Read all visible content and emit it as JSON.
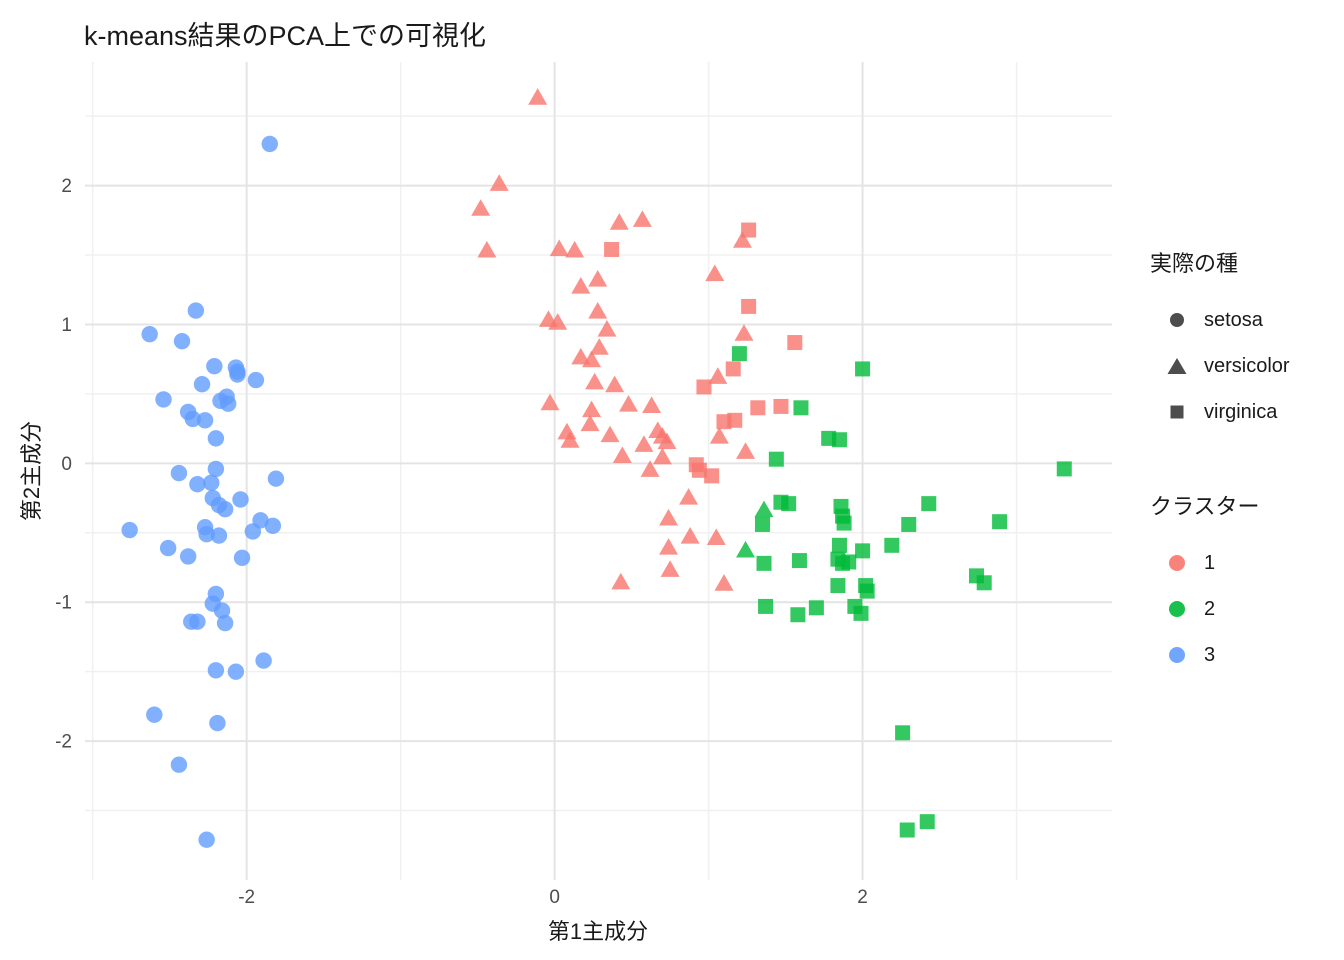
{
  "title": "k-means結果のPCA上での可視化",
  "colors": {
    "cluster_1": "#F8766D",
    "cluster_2": "#00BA38",
    "cluster_3": "#619CFF",
    "legend_shape_glyph": "#4D4D4D",
    "grid_major": "#E4E4E4",
    "grid_minor": "#F0F0F0",
    "tick_label": "#4D4D4D",
    "text": "#1a1a1a"
  },
  "legend_species": {
    "title": "実際の種",
    "items": [
      {
        "shape": "circle",
        "label": "setosa"
      },
      {
        "shape": "triangle",
        "label": "versicolor"
      },
      {
        "shape": "square",
        "label": "virginica"
      }
    ]
  },
  "legend_cluster": {
    "title": "クラスター",
    "items": [
      {
        "color": "#F8766D",
        "label": "1"
      },
      {
        "color": "#00BA38",
        "label": "2"
      },
      {
        "color": "#619CFF",
        "label": "3"
      }
    ]
  },
  "chart_data": {
    "type": "scatter",
    "title": "k-means結果のPCA上での可視化",
    "xlabel": "第1主成分",
    "ylabel": "第2主成分",
    "xlim": [
      -3.05,
      3.62
    ],
    "ylim": [
      -3.0,
      2.89
    ],
    "x_ticks": [
      -2,
      0,
      2
    ],
    "y_ticks": [
      -2,
      -1,
      0,
      1,
      2
    ],
    "x_minor_ticks": [
      -3,
      -1,
      1,
      3
    ],
    "y_minor_ticks": [
      -2.5,
      -1.5,
      -0.5,
      0.5,
      1.5,
      2.5
    ],
    "grid": true,
    "legend_position": "right",
    "shape_by": "実際の種 (species)",
    "color_by": "クラスター (cluster)",
    "point_fields": [
      "x",
      "y",
      "cluster",
      "species"
    ],
    "points": [
      [
        -1.85,
        2.3,
        3,
        "setosa"
      ],
      [
        -2.33,
        1.1,
        3,
        "setosa"
      ],
      [
        -2.63,
        0.93,
        3,
        "setosa"
      ],
      [
        -2.42,
        0.88,
        3,
        "setosa"
      ],
      [
        -2.21,
        0.7,
        3,
        "setosa"
      ],
      [
        -2.07,
        0.69,
        3,
        "setosa"
      ],
      [
        -2.06,
        0.66,
        3,
        "setosa"
      ],
      [
        -2.06,
        0.64,
        3,
        "setosa"
      ],
      [
        -1.94,
        0.6,
        3,
        "setosa"
      ],
      [
        -2.29,
        0.57,
        3,
        "setosa"
      ],
      [
        -2.54,
        0.46,
        3,
        "setosa"
      ],
      [
        -2.13,
        0.48,
        3,
        "setosa"
      ],
      [
        -2.17,
        0.45,
        3,
        "setosa"
      ],
      [
        -2.12,
        0.43,
        3,
        "setosa"
      ],
      [
        -2.38,
        0.37,
        3,
        "setosa"
      ],
      [
        -2.35,
        0.32,
        3,
        "setosa"
      ],
      [
        -2.27,
        0.31,
        3,
        "setosa"
      ],
      [
        -2.2,
        0.18,
        3,
        "setosa"
      ],
      [
        -2.2,
        -0.04,
        3,
        "setosa"
      ],
      [
        -2.44,
        -0.07,
        3,
        "setosa"
      ],
      [
        -1.81,
        -0.11,
        3,
        "setosa"
      ],
      [
        -2.32,
        -0.15,
        3,
        "setosa"
      ],
      [
        -2.23,
        -0.14,
        3,
        "setosa"
      ],
      [
        -2.04,
        -0.26,
        3,
        "setosa"
      ],
      [
        -2.22,
        -0.25,
        3,
        "setosa"
      ],
      [
        -2.18,
        -0.3,
        3,
        "setosa"
      ],
      [
        -2.14,
        -0.33,
        3,
        "setosa"
      ],
      [
        -2.27,
        -0.46,
        3,
        "setosa"
      ],
      [
        -2.26,
        -0.51,
        3,
        "setosa"
      ],
      [
        -2.18,
        -0.52,
        3,
        "setosa"
      ],
      [
        -2.76,
        -0.48,
        3,
        "setosa"
      ],
      [
        -1.96,
        -0.49,
        3,
        "setosa"
      ],
      [
        -1.91,
        -0.41,
        3,
        "setosa"
      ],
      [
        -1.83,
        -0.45,
        3,
        "setosa"
      ],
      [
        -2.51,
        -0.61,
        3,
        "setosa"
      ],
      [
        -2.38,
        -0.67,
        3,
        "setosa"
      ],
      [
        -2.03,
        -0.68,
        3,
        "setosa"
      ],
      [
        -2.2,
        -0.94,
        3,
        "setosa"
      ],
      [
        -2.22,
        -1.01,
        3,
        "setosa"
      ],
      [
        -2.16,
        -1.06,
        3,
        "setosa"
      ],
      [
        -2.36,
        -1.14,
        3,
        "setosa"
      ],
      [
        -2.32,
        -1.14,
        3,
        "setosa"
      ],
      [
        -2.14,
        -1.15,
        3,
        "setosa"
      ],
      [
        -1.89,
        -1.42,
        3,
        "setosa"
      ],
      [
        -2.2,
        -1.49,
        3,
        "setosa"
      ],
      [
        -2.07,
        -1.5,
        3,
        "setosa"
      ],
      [
        -2.6,
        -1.81,
        3,
        "setosa"
      ],
      [
        -2.19,
        -1.87,
        3,
        "setosa"
      ],
      [
        -2.44,
        -2.17,
        3,
        "setosa"
      ],
      [
        -2.26,
        -2.71,
        3,
        "setosa"
      ],
      [
        -0.11,
        2.63,
        1,
        "versicolor"
      ],
      [
        -0.36,
        2.01,
        1,
        "versicolor"
      ],
      [
        -0.48,
        1.83,
        1,
        "versicolor"
      ],
      [
        -0.44,
        1.53,
        1,
        "versicolor"
      ],
      [
        0.42,
        1.73,
        1,
        "versicolor"
      ],
      [
        0.57,
        1.75,
        1,
        "versicolor"
      ],
      [
        0.03,
        1.54,
        1,
        "versicolor"
      ],
      [
        0.13,
        1.53,
        1,
        "versicolor"
      ],
      [
        1.22,
        1.6,
        1,
        "versicolor"
      ],
      [
        1.04,
        1.36,
        1,
        "versicolor"
      ],
      [
        0.17,
        1.27,
        1,
        "versicolor"
      ],
      [
        0.28,
        1.32,
        1,
        "versicolor"
      ],
      [
        -0.04,
        1.03,
        1,
        "versicolor"
      ],
      [
        0.02,
        1.01,
        1,
        "versicolor"
      ],
      [
        0.28,
        1.09,
        1,
        "versicolor"
      ],
      [
        0.34,
        0.96,
        1,
        "versicolor"
      ],
      [
        0.29,
        0.83,
        1,
        "versicolor"
      ],
      [
        0.17,
        0.76,
        1,
        "versicolor"
      ],
      [
        0.24,
        0.74,
        1,
        "versicolor"
      ],
      [
        1.23,
        0.93,
        1,
        "versicolor"
      ],
      [
        1.06,
        0.62,
        1,
        "versicolor"
      ],
      [
        0.26,
        0.58,
        1,
        "versicolor"
      ],
      [
        0.39,
        0.56,
        1,
        "versicolor"
      ],
      [
        -0.03,
        0.43,
        1,
        "versicolor"
      ],
      [
        0.48,
        0.42,
        1,
        "versicolor"
      ],
      [
        0.63,
        0.41,
        1,
        "versicolor"
      ],
      [
        0.24,
        0.38,
        1,
        "versicolor"
      ],
      [
        0.23,
        0.28,
        1,
        "versicolor"
      ],
      [
        0.08,
        0.22,
        1,
        "versicolor"
      ],
      [
        0.1,
        0.16,
        1,
        "versicolor"
      ],
      [
        0.36,
        0.2,
        1,
        "versicolor"
      ],
      [
        0.58,
        0.13,
        1,
        "versicolor"
      ],
      [
        0.67,
        0.23,
        1,
        "versicolor"
      ],
      [
        0.7,
        0.19,
        1,
        "versicolor"
      ],
      [
        0.73,
        0.15,
        1,
        "versicolor"
      ],
      [
        1.07,
        0.19,
        1,
        "versicolor"
      ],
      [
        0.44,
        0.05,
        1,
        "versicolor"
      ],
      [
        1.24,
        0.08,
        1,
        "versicolor"
      ],
      [
        0.62,
        -0.05,
        1,
        "versicolor"
      ],
      [
        0.7,
        0.04,
        1,
        "versicolor"
      ],
      [
        0.87,
        -0.25,
        1,
        "versicolor"
      ],
      [
        0.74,
        -0.4,
        1,
        "versicolor"
      ],
      [
        0.88,
        -0.53,
        1,
        "versicolor"
      ],
      [
        1.05,
        -0.54,
        1,
        "versicolor"
      ],
      [
        0.74,
        -0.61,
        1,
        "versicolor"
      ],
      [
        0.75,
        -0.77,
        1,
        "versicolor"
      ],
      [
        0.43,
        -0.86,
        1,
        "versicolor"
      ],
      [
        1.1,
        -0.87,
        1,
        "versicolor"
      ],
      [
        0.37,
        1.54,
        1,
        "virginica"
      ],
      [
        1.26,
        1.68,
        1,
        "virginica"
      ],
      [
        1.26,
        1.13,
        1,
        "virginica"
      ],
      [
        1.56,
        0.87,
        1,
        "virginica"
      ],
      [
        0.97,
        0.55,
        1,
        "virginica"
      ],
      [
        1.16,
        0.68,
        1,
        "virginica"
      ],
      [
        1.32,
        0.4,
        1,
        "virginica"
      ],
      [
        1.47,
        0.41,
        1,
        "virginica"
      ],
      [
        1.1,
        0.3,
        1,
        "virginica"
      ],
      [
        1.17,
        0.31,
        1,
        "virginica"
      ],
      [
        0.92,
        -0.01,
        1,
        "virginica"
      ],
      [
        0.94,
        -0.05,
        1,
        "virginica"
      ],
      [
        1.02,
        -0.09,
        1,
        "virginica"
      ],
      [
        1.36,
        -0.34,
        2,
        "versicolor"
      ],
      [
        1.24,
        -0.63,
        2,
        "versicolor"
      ],
      [
        1.2,
        0.79,
        2,
        "virginica"
      ],
      [
        2.0,
        0.68,
        2,
        "virginica"
      ],
      [
        1.6,
        0.4,
        2,
        "virginica"
      ],
      [
        1.78,
        0.18,
        2,
        "virginica"
      ],
      [
        1.85,
        0.17,
        2,
        "virginica"
      ],
      [
        1.44,
        0.03,
        2,
        "virginica"
      ],
      [
        3.31,
        -0.04,
        2,
        "virginica"
      ],
      [
        1.47,
        -0.28,
        2,
        "virginica"
      ],
      [
        1.52,
        -0.29,
        2,
        "virginica"
      ],
      [
        2.43,
        -0.29,
        2,
        "virginica"
      ],
      [
        1.86,
        -0.31,
        2,
        "virginica"
      ],
      [
        1.87,
        -0.38,
        2,
        "virginica"
      ],
      [
        1.88,
        -0.43,
        2,
        "virginica"
      ],
      [
        1.35,
        -0.44,
        2,
        "virginica"
      ],
      [
        2.3,
        -0.44,
        2,
        "virginica"
      ],
      [
        2.89,
        -0.42,
        2,
        "virginica"
      ],
      [
        1.85,
        -0.59,
        2,
        "virginica"
      ],
      [
        2.0,
        -0.63,
        2,
        "virginica"
      ],
      [
        2.19,
        -0.59,
        2,
        "virginica"
      ],
      [
        1.36,
        -0.72,
        2,
        "virginica"
      ],
      [
        1.59,
        -0.7,
        2,
        "virginica"
      ],
      [
        1.84,
        -0.69,
        2,
        "virginica"
      ],
      [
        1.87,
        -0.72,
        2,
        "virginica"
      ],
      [
        1.91,
        -0.71,
        2,
        "virginica"
      ],
      [
        1.84,
        -0.88,
        2,
        "virginica"
      ],
      [
        2.02,
        -0.88,
        2,
        "virginica"
      ],
      [
        2.03,
        -0.92,
        2,
        "virginica"
      ],
      [
        2.74,
        -0.81,
        2,
        "virginica"
      ],
      [
        2.79,
        -0.86,
        2,
        "virginica"
      ],
      [
        1.37,
        -1.03,
        2,
        "virginica"
      ],
      [
        1.58,
        -1.09,
        2,
        "virginica"
      ],
      [
        1.7,
        -1.04,
        2,
        "virginica"
      ],
      [
        1.95,
        -1.03,
        2,
        "virginica"
      ],
      [
        1.99,
        -1.08,
        2,
        "virginica"
      ],
      [
        2.26,
        -1.94,
        2,
        "virginica"
      ],
      [
        2.42,
        -2.58,
        2,
        "virginica"
      ],
      [
        2.29,
        -2.64,
        2,
        "virginica"
      ]
    ]
  }
}
